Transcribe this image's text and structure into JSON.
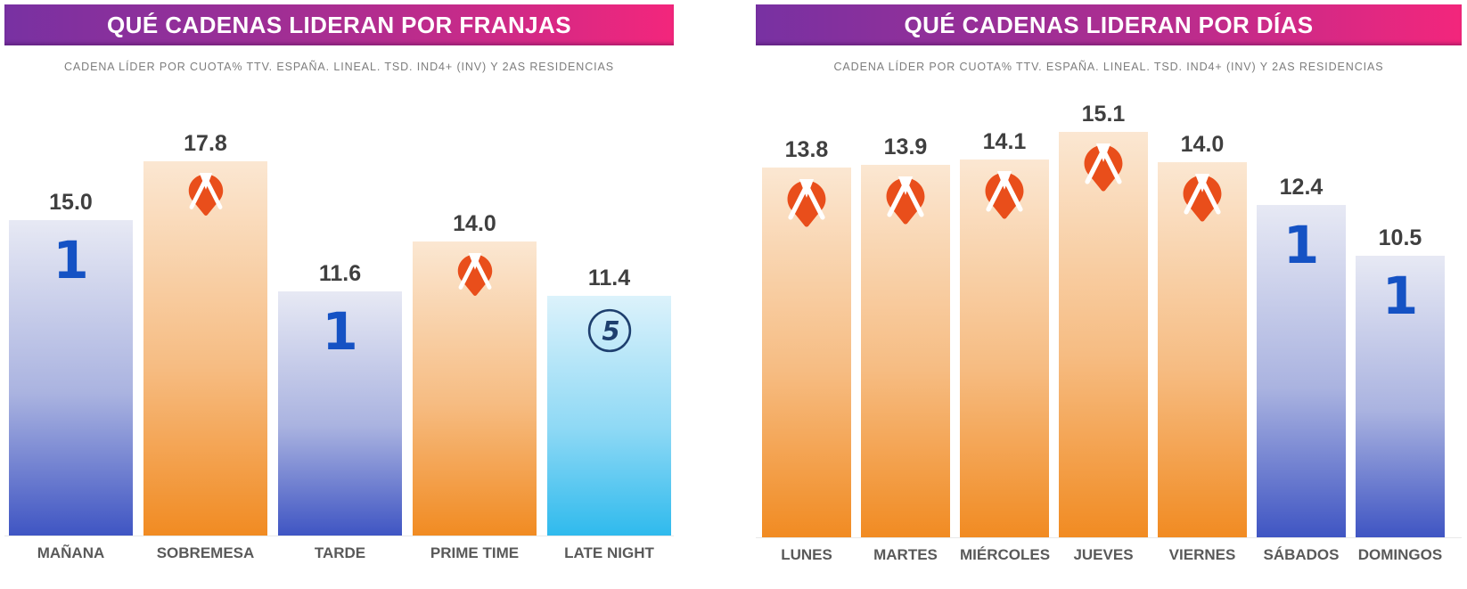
{
  "page": {
    "background": "#ffffff"
  },
  "title_bar": {
    "gradient_start": "#7831a2",
    "gradient_end": "#f3267c",
    "text_color": "#ffffff"
  },
  "brands": {
    "la1": {
      "name": "La 1",
      "icon": "la1-numeral-1-icon",
      "color": "#1552c4",
      "bar_top": "#e7e9f4",
      "bar_bottom": "#3f55c3"
    },
    "antena3": {
      "name": "Antena 3",
      "icon": "antena3-logo-icon",
      "color": "#e94e1b",
      "bar_top": "#fbe7d2",
      "bar_bottom": "#f18b22"
    },
    "telecinco": {
      "name": "Telecinco",
      "icon": "telecinco-5-icon",
      "color": "#1e3f6e",
      "bar_top": "#dcf2fb",
      "bar_bottom": "#2fbaed"
    }
  },
  "chart_data": [
    {
      "type": "bar",
      "title": "QUÉ CADENAS LIDERAN POR FRANJAS",
      "subtitle": "CADENA LÍDER POR CUOTA% TTV. ESPAÑA. LINEAL. TSD. IND4+ (INV) Y 2AS RESIDENCIAS",
      "categories": [
        "MAÑANA",
        "SOBREMESA",
        "TARDE",
        "PRIME TIME",
        "LATE NIGHT"
      ],
      "values": [
        15.0,
        17.8,
        11.6,
        14.0,
        11.4
      ],
      "leaders": [
        "la1",
        "antena3",
        "la1",
        "antena3",
        "telecinco"
      ],
      "value_label_decimals": 1,
      "xlabel": "",
      "ylabel": "",
      "ylim": [
        0,
        19
      ],
      "grid": false,
      "legend": "none"
    },
    {
      "type": "bar",
      "title": "QUÉ CADENAS LIDERAN POR DÍAS",
      "subtitle": "CADENA LÍDER POR CUOTA% TTV. ESPAÑA. LINEAL. TSD. IND4+ (INV) Y 2AS RESIDENCIAS",
      "categories": [
        "LUNES",
        "MARTES",
        "MIÉRCOLES",
        "JUEVES",
        "VIERNES",
        "SÁBADOS",
        "DOMINGOS"
      ],
      "values": [
        13.8,
        13.9,
        14.1,
        15.1,
        14.0,
        12.4,
        10.5
      ],
      "leaders": [
        "antena3",
        "antena3",
        "antena3",
        "antena3",
        "antena3",
        "la1",
        "la1"
      ],
      "value_label_decimals": 1,
      "xlabel": "",
      "ylabel": "",
      "ylim": [
        0,
        16
      ],
      "grid": false,
      "legend": "none"
    }
  ]
}
